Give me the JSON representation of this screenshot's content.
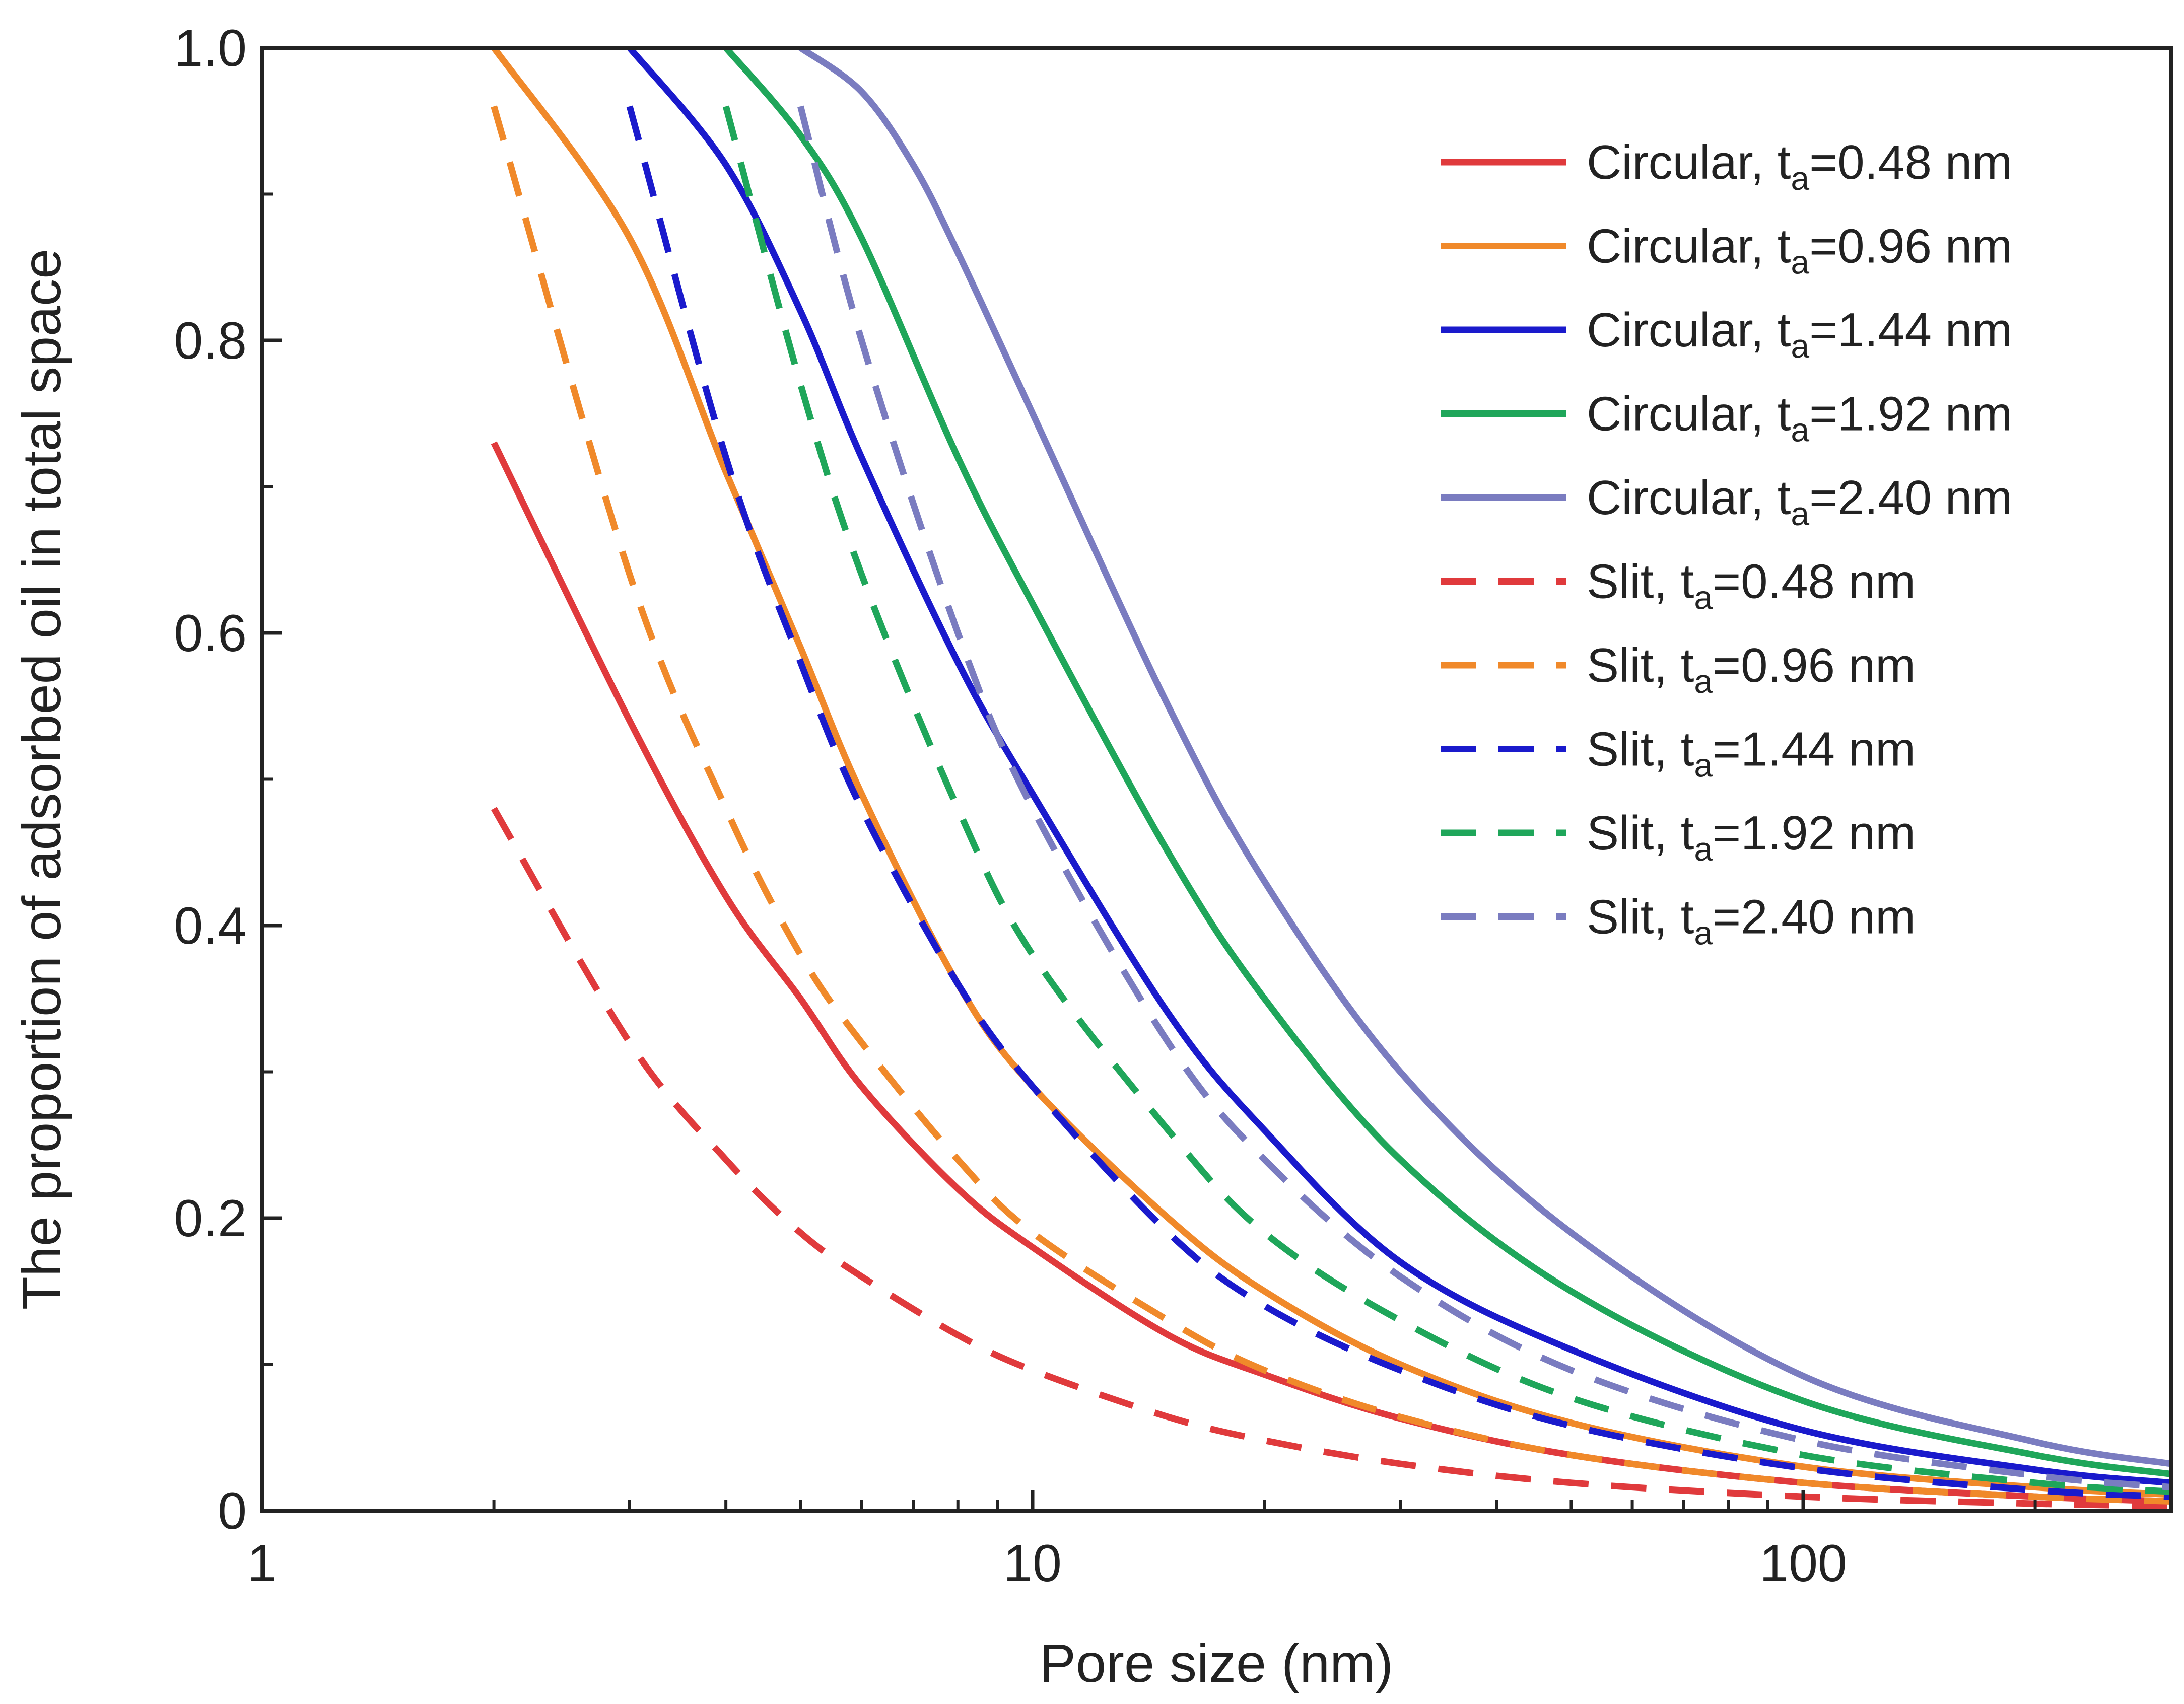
{
  "chart_data": {
    "type": "line",
    "title": "",
    "xlabel": "Pore size (nm)",
    "ylabel": "The proportion of adsorbed oil in total space",
    "x_scale": "log",
    "xlim": [
      1,
      300
    ],
    "ylim": [
      0,
      1.0
    ],
    "x_ticks": [
      1,
      10,
      100
    ],
    "x_tick_labels": [
      "1",
      "10",
      "100"
    ],
    "y_ticks": [
      0,
      0.2,
      0.4,
      0.6,
      0.8,
      1.0
    ],
    "y_tick_labels": [
      "0",
      "0.2",
      "0.4",
      "0.6",
      "0.8",
      "1.0"
    ],
    "grid": false,
    "legend_position": "top-right",
    "series": [
      {
        "name": "Circular, ta=0.48 nm",
        "label_prefix": "Circular, t",
        "label_sub": "a",
        "label_suffix": "=0.48 nm",
        "color": "#e03a3c",
        "style": "solid",
        "x": [
          2,
          3,
          4,
          5,
          6,
          8,
          10,
          15,
          20,
          30,
          50,
          100,
          200,
          300
        ],
        "y": [
          0.73,
          0.54,
          0.42,
          0.35,
          0.29,
          0.22,
          0.18,
          0.12,
          0.093,
          0.063,
          0.038,
          0.019,
          0.0096,
          0.0064
        ]
      },
      {
        "name": "Circular, ta=0.96 nm",
        "label_prefix": "Circular, t",
        "label_sub": "a",
        "label_suffix": "=0.96 nm",
        "color": "#f0892a",
        "style": "solid",
        "x": [
          2,
          3,
          4,
          5,
          6,
          8,
          10,
          15,
          20,
          30,
          50,
          100,
          200,
          300
        ],
        "y": [
          1.0,
          0.87,
          0.71,
          0.59,
          0.49,
          0.36,
          0.29,
          0.2,
          0.15,
          0.1,
          0.06,
          0.03,
          0.016,
          0.011
        ]
      },
      {
        "name": "Circular, ta=1.44 nm",
        "label_prefix": "Circular, t",
        "label_sub": "a",
        "label_suffix": "=1.44 nm",
        "color": "#1a1acc",
        "style": "solid",
        "x": [
          3,
          4,
          5,
          6,
          8,
          10,
          15,
          20,
          30,
          50,
          100,
          200,
          300
        ],
        "y": [
          1.0,
          0.92,
          0.82,
          0.72,
          0.58,
          0.49,
          0.34,
          0.26,
          0.17,
          0.11,
          0.055,
          0.028,
          0.019
        ]
      },
      {
        "name": "Circular, ta=1.92 nm",
        "label_prefix": "Circular, t",
        "label_sub": "a",
        "label_suffix": "=1.92 nm",
        "color": "#1fa65a",
        "style": "solid",
        "x": [
          4,
          5,
          6,
          8,
          10,
          15,
          20,
          30,
          50,
          100,
          200,
          300
        ],
        "y": [
          1.0,
          0.94,
          0.87,
          0.72,
          0.62,
          0.45,
          0.35,
          0.24,
          0.15,
          0.075,
          0.038,
          0.025
        ]
      },
      {
        "name": "Circular, ta=2.40 nm",
        "label_prefix": "Circular, t",
        "label_sub": "a",
        "label_suffix": "=2.40 nm",
        "color": "#7a7cc0",
        "style": "solid",
        "x": [
          5,
          6,
          7,
          8,
          10,
          15,
          20,
          30,
          50,
          100,
          200,
          300
        ],
        "y": [
          1.0,
          0.97,
          0.92,
          0.86,
          0.75,
          0.55,
          0.43,
          0.3,
          0.19,
          0.092,
          0.047,
          0.032
        ]
      },
      {
        "name": "Slit, ta=0.48 nm",
        "label_prefix": "Slit, t",
        "label_sub": "a",
        "label_suffix": "=0.48 nm",
        "color": "#e03a3c",
        "style": "dashed",
        "x": [
          2,
          3,
          4,
          5,
          6,
          8,
          10,
          15,
          20,
          30,
          50,
          100,
          200,
          300
        ],
        "y": [
          0.48,
          0.32,
          0.24,
          0.19,
          0.16,
          0.12,
          0.096,
          0.064,
          0.048,
          0.032,
          0.019,
          0.0096,
          0.0048,
          0.0032
        ]
      },
      {
        "name": "Slit, ta=0.96 nm",
        "label_prefix": "Slit, t",
        "label_sub": "a",
        "label_suffix": "=0.96 nm",
        "color": "#f0892a",
        "style": "dashed",
        "x": [
          2,
          3,
          4,
          5,
          6,
          8,
          10,
          15,
          20,
          30,
          50,
          100,
          200,
          300
        ],
        "y": [
          0.96,
          0.64,
          0.48,
          0.38,
          0.32,
          0.24,
          0.19,
          0.13,
          0.096,
          0.064,
          0.038,
          0.019,
          0.0096,
          0.0064
        ]
      },
      {
        "name": "Slit, ta=1.44 nm",
        "label_prefix": "Slit, t",
        "label_sub": "a",
        "label_suffix": "=1.44 nm",
        "color": "#1a1acc",
        "style": "dashed",
        "x": [
          3,
          4,
          5,
          6,
          8,
          10,
          15,
          20,
          30,
          50,
          100,
          200,
          300
        ],
        "y": [
          0.96,
          0.72,
          0.58,
          0.48,
          0.36,
          0.29,
          0.19,
          0.14,
          0.096,
          0.058,
          0.029,
          0.014,
          0.0096
        ]
      },
      {
        "name": "Slit, ta=1.92 nm",
        "label_prefix": "Slit, t",
        "label_sub": "a",
        "label_suffix": "=1.92 nm",
        "color": "#1fa65a",
        "style": "dashed",
        "x": [
          4,
          5,
          6,
          8,
          10,
          15,
          20,
          30,
          50,
          100,
          200,
          300
        ],
        "y": [
          0.96,
          0.77,
          0.64,
          0.48,
          0.38,
          0.26,
          0.19,
          0.13,
          0.077,
          0.038,
          0.019,
          0.013
        ]
      },
      {
        "name": "Slit, ta=2.40 nm",
        "label_prefix": "Slit, t",
        "label_sub": "a",
        "label_suffix": "=2.40 nm",
        "color": "#7a7cc0",
        "style": "dashed",
        "x": [
          5,
          6,
          8,
          10,
          15,
          20,
          30,
          50,
          100,
          200,
          300
        ],
        "y": [
          0.96,
          0.8,
          0.6,
          0.48,
          0.32,
          0.24,
          0.16,
          0.096,
          0.048,
          0.024,
          0.016
        ]
      }
    ]
  }
}
